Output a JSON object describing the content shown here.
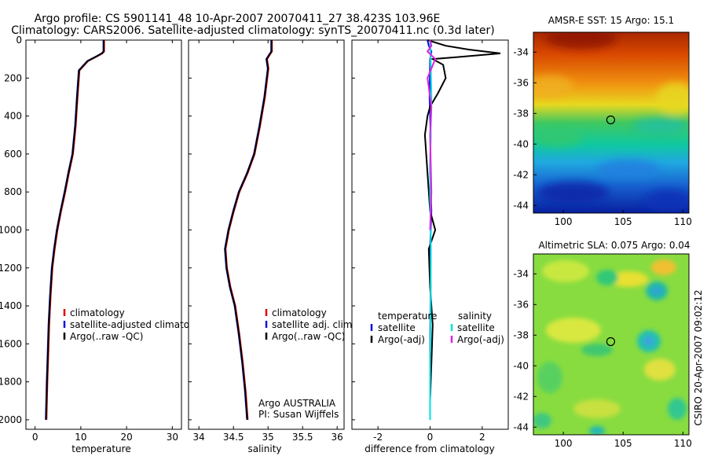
{
  "header": {
    "line1": "Argo profile: CS 5901141_48 10-Apr-2007 20070411_27 38.423S 103.96E",
    "line2": "Climatology: CARS2006. Satellite-adjusted climatology: synTS_20070411.nc (0.3d later)"
  },
  "side_credit": "CSIRO 20-Apr-2007 09:02:12",
  "colors": {
    "climatology": "#e00000",
    "satellite": "#1010e0",
    "argo": "#000000",
    "sat_salinity": "#00e0e0",
    "argo_salinity": "#e020e0"
  },
  "chart_data": [
    {
      "type": "line",
      "id": "temperature",
      "xlabel": "temperature",
      "xlim": [
        -2,
        32
      ],
      "ylim": [
        2050,
        0
      ],
      "xticks": [
        0,
        10,
        20,
        30
      ],
      "yticks": [
        0,
        200,
        400,
        600,
        800,
        1000,
        1200,
        1400,
        1600,
        1800,
        2000
      ],
      "legend": [
        "climatology",
        "satellite-adjusted climatology",
        "Argo(..raw -QC)"
      ],
      "series": [
        {
          "name": "climatology",
          "color": "#e00000",
          "x": [
            15.0,
            15.0,
            14.6,
            13.5,
            11.5,
            9.6,
            9.2,
            8.8,
            8.2,
            7.3,
            6.5,
            5.6,
            4.8,
            4.2,
            3.7,
            3.3,
            3.0,
            2.8,
            2.6,
            2.5,
            2.4
          ],
          "y": [
            0,
            60,
            70,
            85,
            110,
            160,
            300,
            450,
            600,
            700,
            800,
            900,
            1000,
            1100,
            1200,
            1350,
            1500,
            1650,
            1800,
            1900,
            2000
          ]
        },
        {
          "name": "satellite-adjusted climatology",
          "color": "#1010e0",
          "x": [
            15.0,
            15.0,
            14.6,
            13.5,
            11.5,
            9.6,
            9.2,
            8.8,
            8.2,
            7.3,
            6.5,
            5.6,
            4.8,
            4.2,
            3.7,
            3.3,
            3.0,
            2.8,
            2.6,
            2.5,
            2.4
          ],
          "y": [
            0,
            60,
            70,
            85,
            110,
            160,
            300,
            450,
            600,
            700,
            800,
            900,
            1000,
            1100,
            1200,
            1350,
            1500,
            1650,
            1800,
            1900,
            2000
          ]
        },
        {
          "name": "Argo(..raw -QC)",
          "color": "#000000",
          "x": [
            15.0,
            15.0,
            14.6,
            13.5,
            11.5,
            9.6,
            9.2,
            8.8,
            8.2,
            7.3,
            6.5,
            5.6,
            4.8,
            4.2,
            3.7,
            3.3,
            3.0,
            2.8,
            2.6,
            2.5,
            2.4
          ],
          "y": [
            0,
            60,
            70,
            85,
            110,
            160,
            300,
            450,
            600,
            700,
            800,
            900,
            1000,
            1100,
            1200,
            1350,
            1500,
            1650,
            1800,
            1900,
            2000
          ]
        }
      ]
    },
    {
      "type": "line",
      "id": "salinity",
      "xlabel": "salinity",
      "xlim": [
        33.85,
        36.1
      ],
      "ylim": [
        2050,
        0
      ],
      "xticks": [
        34,
        34.5,
        35,
        35.5,
        36
      ],
      "xticklabels": [
        "34",
        "34.5",
        "35",
        "35.5",
        "36"
      ],
      "legend": [
        "climatology",
        "satellite adj. clim.",
        "Argo(..raw -QC)"
      ],
      "annotation": [
        "Argo AUSTRALIA",
        "PI: Susan Wijffels"
      ],
      "series": [
        {
          "name": "climatology",
          "color": "#e00000",
          "x": [
            35.05,
            35.05,
            34.98,
            35.0,
            34.95,
            34.88,
            34.8,
            34.7,
            34.58,
            34.5,
            34.43,
            34.38,
            34.4,
            34.45,
            34.52,
            34.58,
            34.63,
            34.67,
            34.7
          ],
          "y": [
            0,
            60,
            100,
            150,
            300,
            450,
            600,
            700,
            800,
            900,
            1000,
            1100,
            1200,
            1300,
            1400,
            1550,
            1700,
            1850,
            2000
          ]
        },
        {
          "name": "satellite adj. clim.",
          "color": "#1010e0",
          "x": [
            35.05,
            35.05,
            34.98,
            35.0,
            34.95,
            34.88,
            34.8,
            34.7,
            34.58,
            34.5,
            34.43,
            34.38,
            34.4,
            34.45,
            34.52,
            34.58,
            34.63,
            34.67,
            34.7
          ],
          "y": [
            0,
            60,
            100,
            150,
            300,
            450,
            600,
            700,
            800,
            900,
            1000,
            1100,
            1200,
            1300,
            1400,
            1550,
            1700,
            1850,
            2000
          ]
        },
        {
          "name": "Argo(..raw -QC)",
          "color": "#000000",
          "x": [
            35.05,
            35.05,
            34.98,
            35.0,
            34.95,
            34.88,
            34.8,
            34.7,
            34.58,
            34.5,
            34.43,
            34.38,
            34.4,
            34.45,
            34.52,
            34.58,
            34.63,
            34.67,
            34.7
          ],
          "y": [
            0,
            60,
            100,
            150,
            300,
            450,
            600,
            700,
            800,
            900,
            1000,
            1100,
            1200,
            1300,
            1400,
            1550,
            1700,
            1850,
            2000
          ]
        }
      ]
    },
    {
      "type": "line",
      "id": "difference",
      "xlabel": "difference from climatology",
      "xlim": [
        -3.0,
        3.0
      ],
      "ylim": [
        2050,
        0
      ],
      "xticks": [
        -2,
        0,
        2
      ],
      "legend_left": [
        "temperature",
        "satellite",
        "Argo(-adj)"
      ],
      "legend_right": [
        "salinity",
        "satellite",
        "Argo(-adj)"
      ],
      "series": [
        {
          "name": "temperature satellite",
          "color": "#1010e0",
          "x": [
            -0.1,
            -0.05,
            0.05,
            0.0,
            -0.02,
            0.02,
            0.0,
            0.05,
            0.0,
            0.02,
            0.0,
            0.0
          ],
          "y": [
            0,
            30,
            60,
            100,
            300,
            500,
            700,
            900,
            1100,
            1300,
            1600,
            2000
          ]
        },
        {
          "name": "temperature Argo(-adj)",
          "color": "#000000",
          "x": [
            -0.1,
            0.6,
            1.5,
            2.7,
            1.0,
            0.1,
            0.5,
            0.6,
            0.3,
            0.0,
            -0.1,
            -0.2,
            -0.1,
            0.0,
            0.2,
            -0.05,
            0.0,
            0.1,
            0.05,
            0.0,
            0.0
          ],
          "y": [
            0,
            30,
            50,
            70,
            90,
            100,
            130,
            200,
            280,
            350,
            400,
            500,
            700,
            900,
            1000,
            1100,
            1300,
            1500,
            1700,
            1900,
            2000
          ]
        },
        {
          "name": "salinity satellite",
          "color": "#00e0e0",
          "x": [
            0.0,
            0.02,
            0.05,
            0.02,
            0.0,
            0.03,
            0.02,
            0.0,
            0.0
          ],
          "y": [
            0,
            100,
            300,
            500,
            800,
            1100,
            1400,
            1700,
            2000
          ]
        },
        {
          "name": "salinity Argo(-adj)",
          "color": "#e020e0",
          "x": [
            0.0,
            0.05,
            -0.1,
            0.2,
            -0.1,
            0.05,
            0.0,
            0.05,
            0.0
          ],
          "y": [
            0,
            30,
            60,
            100,
            200,
            350,
            500,
            800,
            1000
          ]
        }
      ]
    },
    {
      "type": "heatmap",
      "id": "sst_map",
      "title": "AMSR-E SST: 15  Argo: 15.1",
      "xlim": [
        97.5,
        110.5
      ],
      "ylim": [
        -44.5,
        -32.7
      ],
      "xticks": [
        100,
        105,
        110
      ],
      "yticks": [
        -34,
        -36,
        -38,
        -40,
        -42,
        -44
      ],
      "marker": {
        "lon": 103.96,
        "lat": -38.42
      }
    },
    {
      "type": "heatmap",
      "id": "sla_map",
      "title": "Altimetric SLA: 0.075  Argo: 0.04",
      "xlim": [
        97.5,
        110.5
      ],
      "ylim": [
        -44.5,
        -32.7
      ],
      "xticks": [
        100,
        105,
        110
      ],
      "yticks": [
        -34,
        -36,
        -38,
        -40,
        -42,
        -44
      ],
      "marker": {
        "lon": 103.96,
        "lat": -38.42
      }
    }
  ]
}
